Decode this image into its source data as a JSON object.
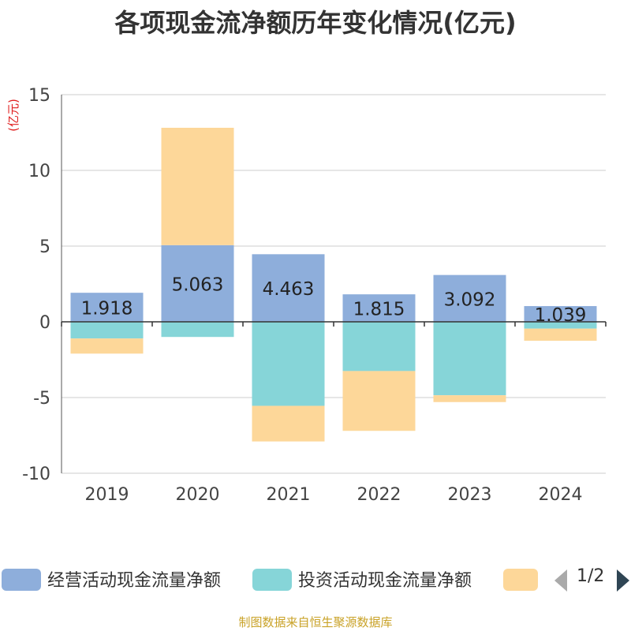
{
  "chart_data": {
    "type": "bar",
    "stacked": true,
    "title": "各项现金流净额历年变化情况(亿元)",
    "ylabel": "(亿元)",
    "xlabel": "",
    "categories": [
      "2019",
      "2020",
      "2021",
      "2022",
      "2023",
      "2024"
    ],
    "ylim": [
      -10,
      15
    ],
    "yticks": [
      15,
      10,
      5,
      0,
      -5,
      -10
    ],
    "grid": true,
    "series": [
      {
        "name": "经营活动现金流量净额",
        "color": "#8eaedb",
        "values": [
          1.918,
          5.063,
          4.463,
          1.815,
          3.092,
          1.039
        ],
        "labels": [
          "1.918",
          "5.063",
          "4.463",
          "1.815",
          "3.092",
          "1.039"
        ]
      },
      {
        "name": "投资活动现金流量净额",
        "color": "#86d5d8",
        "values": [
          -1.1,
          -1.0,
          -5.55,
          -3.25,
          -4.85,
          -0.45
        ]
      },
      {
        "name": "",
        "color": "#fdd799",
        "values": [
          -1.0,
          7.75,
          -2.35,
          -3.95,
          -0.45,
          -0.8
        ]
      }
    ],
    "legend_position": "bottom"
  },
  "legend": {
    "page": "1/2"
  },
  "footer": {
    "source": "制图数据来自恒生聚源数据库"
  }
}
